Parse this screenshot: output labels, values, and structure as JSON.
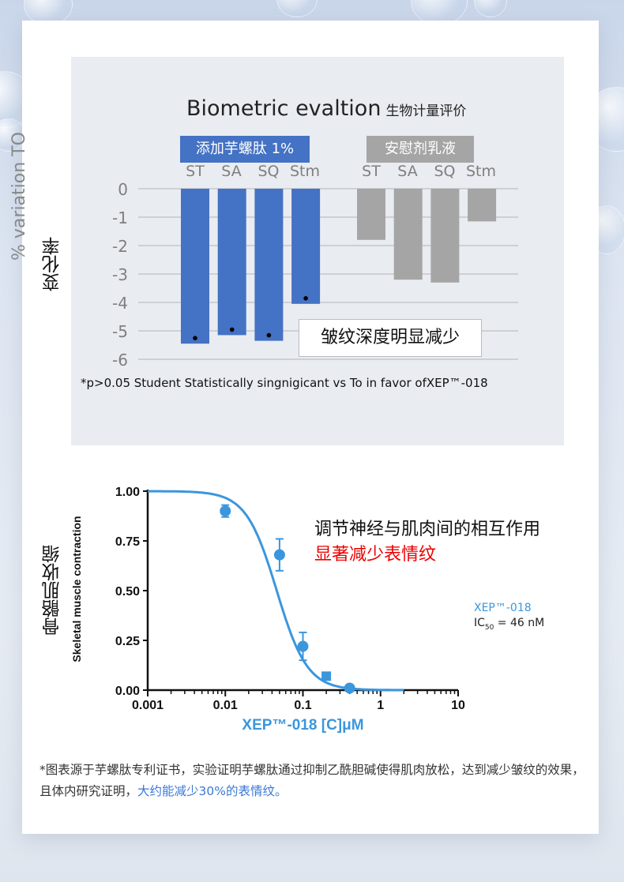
{
  "chart_data": [
    {
      "type": "bar",
      "title": "Biometric evaltion",
      "title_cn": "生物计量评价",
      "ylabel": "% variation TO",
      "ylabel_cn": "变化率",
      "ylim": [
        -6,
        0
      ],
      "yticks": [
        "0",
        "-1",
        "-2",
        "-3",
        "-4",
        "-5",
        "-6"
      ],
      "grid": true,
      "categories": [
        "ST",
        "SA",
        "SQ",
        "Stm"
      ],
      "series": [
        {
          "name": "添加芋螺肽 1%",
          "color": "#4472c4",
          "values": [
            -5.45,
            -5.15,
            -5.35,
            -4.05
          ],
          "significant": [
            true,
            true,
            true,
            true
          ]
        },
        {
          "name": "安慰剂乳液",
          "color": "#a5a5a5",
          "values": [
            -1.8,
            -3.2,
            -3.3,
            -1.15
          ],
          "significant": [
            false,
            false,
            false,
            false
          ]
        }
      ],
      "annotation": "皱纹深度明显减少",
      "footnote": "*p>0.05 Student Statistically singnigicant vs To in favor ofXEP™-018"
    },
    {
      "type": "scatter",
      "xlabel": "XEP™-018 [C]μM",
      "ylabel": "Skeletal muscle contraction",
      "ylabel_cn": "骨骼肌收缩",
      "xscale": "log",
      "xlim": [
        0.001,
        10
      ],
      "ylim": [
        0,
        1
      ],
      "xticks": [
        "0.001",
        "0.01",
        "0.1",
        "1",
        "10"
      ],
      "yticks": [
        "0.00",
        "0.25",
        "0.50",
        "0.75",
        "1.00"
      ],
      "color": "#3b96dc",
      "points": [
        {
          "x": 0.01,
          "y": 0.9,
          "err": 0.03
        },
        {
          "x": 0.05,
          "y": 0.68,
          "err": 0.08
        },
        {
          "x": 0.1,
          "y": 0.22,
          "err": 0.07
        },
        {
          "x": 0.2,
          "y": 0.07,
          "err": 0.01
        },
        {
          "x": 0.4,
          "y": 0.01,
          "err": 0.005
        }
      ],
      "fit": {
        "ic50": 0.046,
        "hill": 2.2
      },
      "legend_series": "XEP™-018",
      "legend_ic50_label": "IC",
      "legend_ic50_sub": "50",
      "legend_ic50_value": " = 46 nM",
      "notes": [
        "调节神经与肌肉间的相互作用",
        "显著减少表情纹"
      ]
    }
  ],
  "footer": {
    "text": "*图表源于芋螺肽专利证书，实验证明芋螺肽通过抑制乙酰胆碱使得肌肉放松，达到减少皱纹的效果，且体内研究证明，",
    "highlight": "大约能减少30%的表情纹。"
  }
}
